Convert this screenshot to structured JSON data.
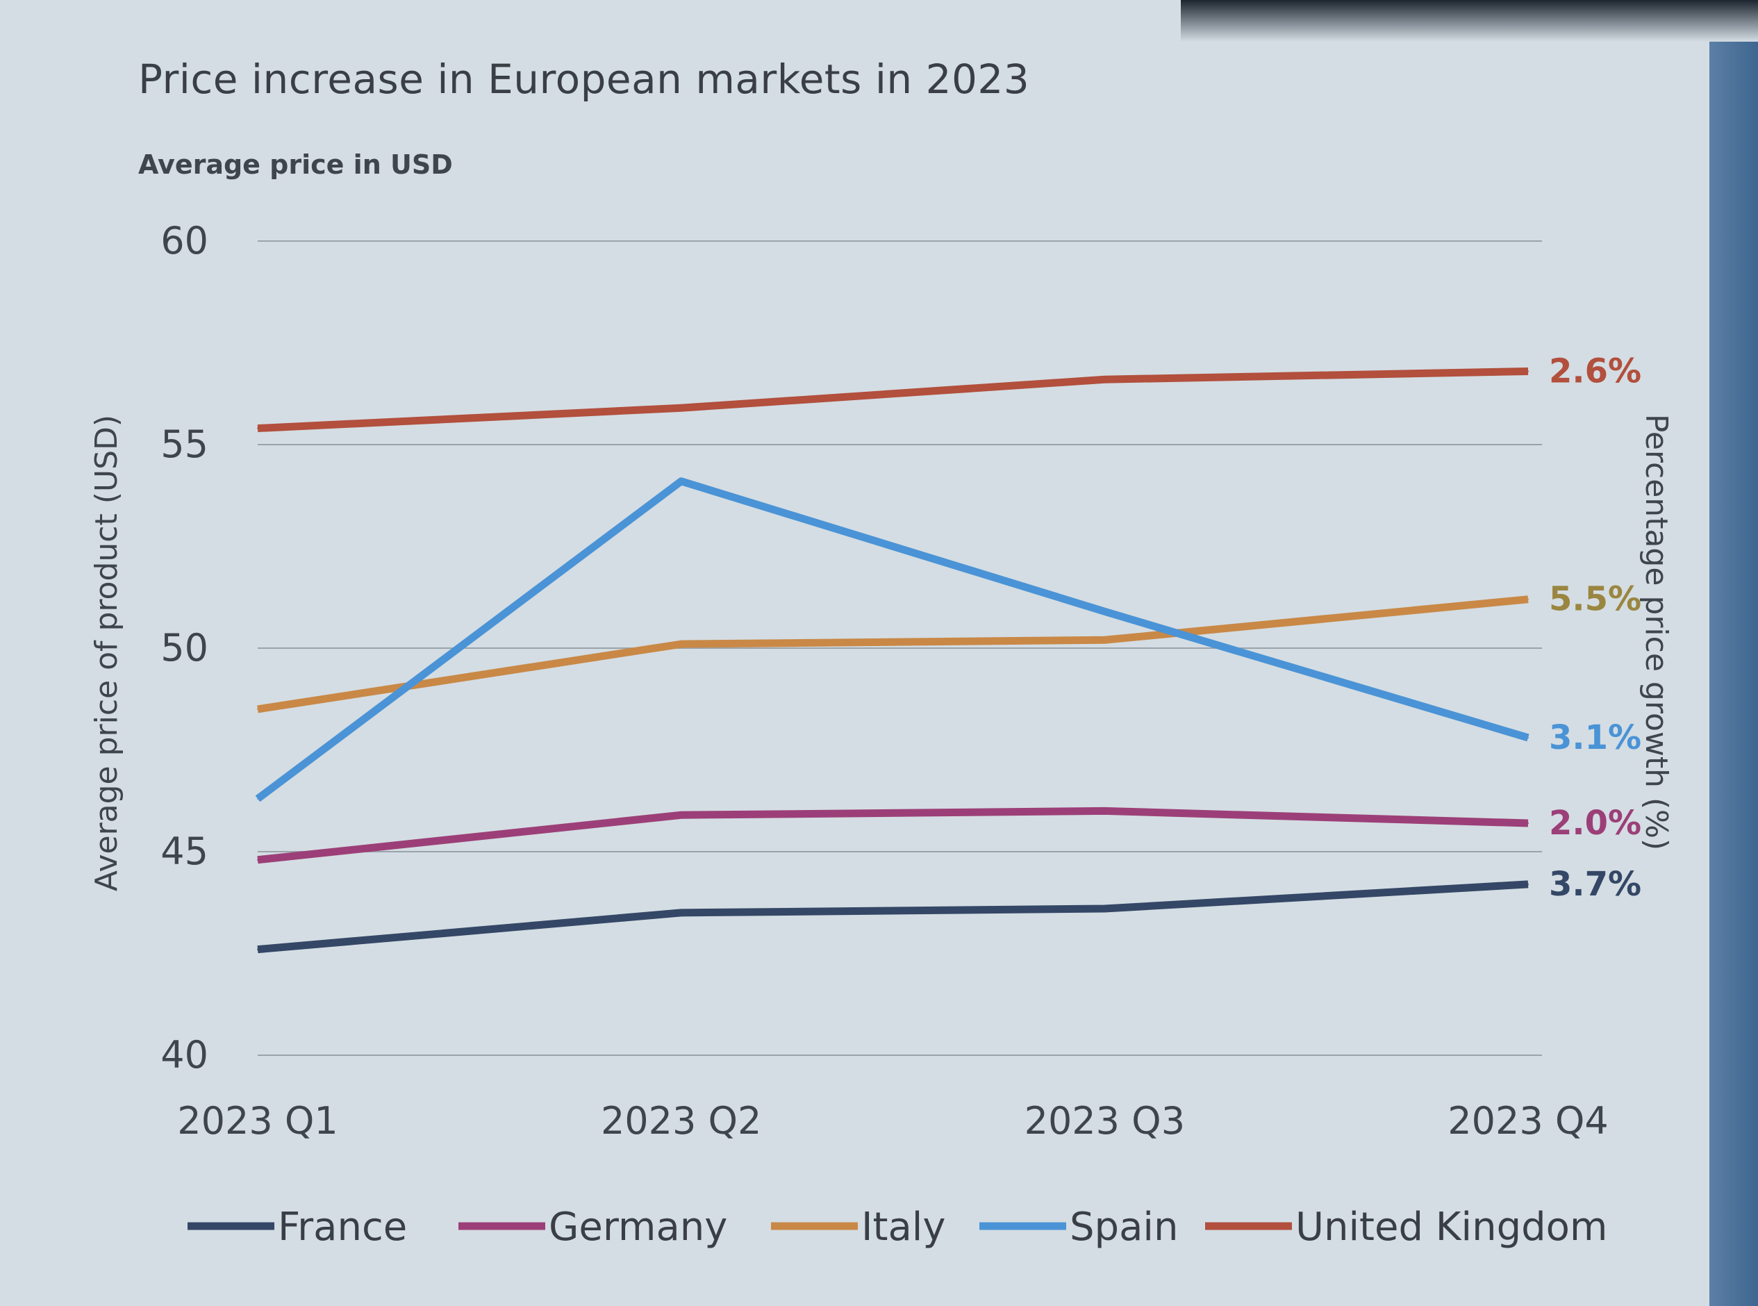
{
  "chart_data": {
    "type": "line",
    "title": "Price increase in European markets in 2023",
    "subtitle": "Average price in USD",
    "ylabel": "Average price of product (USD)",
    "y2label": "Percentage price growth (%)",
    "xlabel": "",
    "categories": [
      "2023 Q1",
      "2023 Q2",
      "2023 Q3",
      "2023 Q4"
    ],
    "ylim": [
      40,
      60
    ],
    "yticks": [
      "40",
      "45",
      "50",
      "55",
      "60"
    ],
    "grid": true,
    "legend_position": "bottom",
    "series": [
      {
        "name": "France",
        "color": "#344766",
        "values": [
          42.6,
          43.5,
          43.6,
          44.2
        ],
        "growth_label": "3.7%"
      },
      {
        "name": "Germany",
        "color": "#9c3f78",
        "values": [
          44.8,
          45.9,
          46.0,
          45.7
        ],
        "growth_label": "2.0%"
      },
      {
        "name": "Italy",
        "color": "#c98846",
        "values": [
          48.5,
          50.1,
          50.2,
          51.2
        ],
        "growth_label": "5.5%",
        "label_color": "#9a8640"
      },
      {
        "name": "Spain",
        "color": "#4a93d6",
        "values": [
          46.3,
          54.1,
          50.9,
          47.8
        ],
        "growth_label": "3.1%"
      },
      {
        "name": "United Kingdom",
        "color": "#b24f3d",
        "values": [
          55.4,
          55.9,
          56.6,
          56.8
        ],
        "growth_label": "2.6%"
      }
    ]
  }
}
